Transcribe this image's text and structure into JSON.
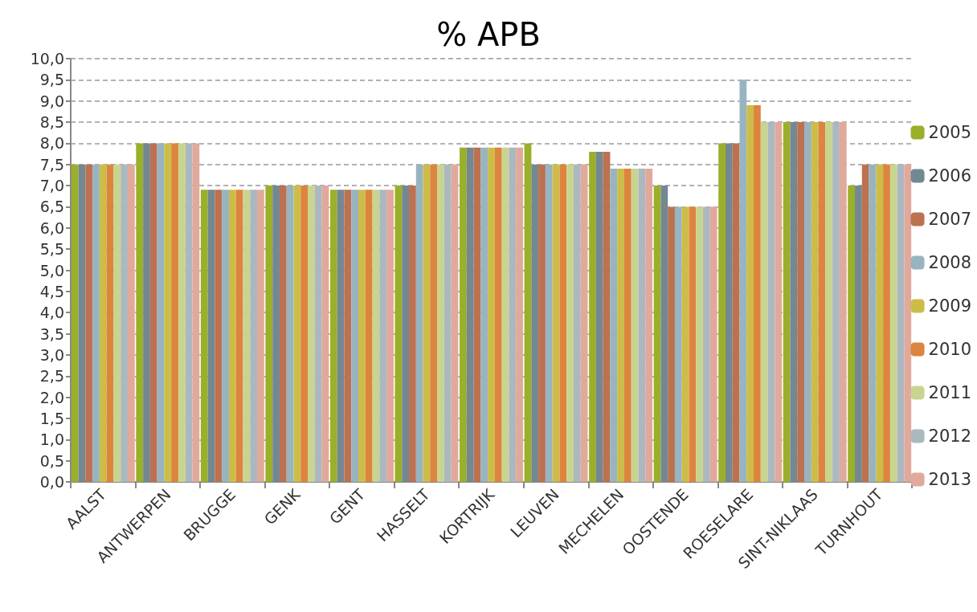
{
  "chart_data": {
    "type": "bar",
    "title": "% APB",
    "categories": [
      "AALST",
      "ANTWERPEN",
      "BRUGGE",
      "GENK",
      "GENT",
      "HASSELT",
      "KORTRIJK",
      "LEUVEN",
      "MECHELEN",
      "OOSTENDE",
      "ROESELARE",
      "SINT-NIKLAAS",
      "TURNHOUT"
    ],
    "series": [
      {
        "name": "2005",
        "color": "#9aaf2a",
        "values": [
          7.5,
          8.0,
          6.9,
          7.0,
          6.9,
          7.0,
          7.9,
          8.0,
          7.8,
          7.0,
          8.0,
          8.5,
          7.0
        ]
      },
      {
        "name": "2006",
        "color": "#748892",
        "values": [
          7.5,
          8.0,
          6.9,
          7.0,
          6.9,
          7.0,
          7.9,
          7.5,
          7.8,
          7.0,
          8.0,
          8.5,
          7.0
        ]
      },
      {
        "name": "2007",
        "color": "#bd7150",
        "values": [
          7.5,
          8.0,
          6.9,
          7.0,
          6.9,
          7.0,
          7.9,
          7.5,
          7.8,
          6.5,
          8.0,
          8.5,
          7.5
        ]
      },
      {
        "name": "2008",
        "color": "#98b4c1",
        "values": [
          7.5,
          8.0,
          6.9,
          7.0,
          6.9,
          7.5,
          7.9,
          7.5,
          7.4,
          6.5,
          9.5,
          8.5,
          7.5
        ]
      },
      {
        "name": "2009",
        "color": "#cdbd48",
        "values": [
          7.5,
          8.0,
          6.9,
          7.0,
          6.9,
          7.5,
          7.9,
          7.5,
          7.4,
          6.5,
          8.9,
          8.5,
          7.5
        ]
      },
      {
        "name": "2010",
        "color": "#dd843f",
        "values": [
          7.5,
          8.0,
          6.9,
          7.0,
          6.9,
          7.5,
          7.9,
          7.5,
          7.4,
          6.5,
          8.9,
          8.5,
          7.5
        ]
      },
      {
        "name": "2011",
        "color": "#c9d58f",
        "values": [
          7.5,
          8.0,
          6.9,
          7.0,
          6.9,
          7.5,
          7.9,
          7.5,
          7.4,
          6.5,
          8.5,
          8.5,
          7.5
        ]
      },
      {
        "name": "2012",
        "color": "#acb8bf",
        "values": [
          7.5,
          8.0,
          6.9,
          7.0,
          6.9,
          7.5,
          7.9,
          7.5,
          7.4,
          6.5,
          8.5,
          8.5,
          7.5
        ]
      },
      {
        "name": "2013",
        "color": "#e1a99b",
        "values": [
          7.5,
          8.0,
          6.9,
          7.0,
          6.9,
          7.5,
          7.9,
          7.5,
          7.4,
          6.5,
          8.5,
          8.5,
          7.5
        ]
      }
    ],
    "ylim": [
      0,
      10
    ],
    "yticks": [
      {
        "value": 0,
        "label": "0,0"
      },
      {
        "value": 0.5,
        "label": "0,5"
      },
      {
        "value": 1,
        "label": "1,0"
      },
      {
        "value": 1.5,
        "label": "1,5"
      },
      {
        "value": 2,
        "label": "2,0"
      },
      {
        "value": 2.5,
        "label": "2,5"
      },
      {
        "value": 3,
        "label": "3,0"
      },
      {
        "value": 3.5,
        "label": "3,5"
      },
      {
        "value": 4,
        "label": "4,0"
      },
      {
        "value": 4.5,
        "label": "4,5"
      },
      {
        "value": 5,
        "label": "5,0"
      },
      {
        "value": 5.5,
        "label": "5,5"
      },
      {
        "value": 6,
        "label": "6,0"
      },
      {
        "value": 6.5,
        "label": "6,5"
      },
      {
        "value": 7,
        "label": "7,0"
      },
      {
        "value": 7.5,
        "label": "7,5"
      },
      {
        "value": 8,
        "label": "8,0"
      },
      {
        "value": 8.5,
        "label": "8,5"
      },
      {
        "value": 9,
        "label": "9,0"
      },
      {
        "value": 9.5,
        "label": "9,5"
      },
      {
        "value": 10,
        "label": "10,0"
      }
    ],
    "grid": "y",
    "legend": "right"
  }
}
